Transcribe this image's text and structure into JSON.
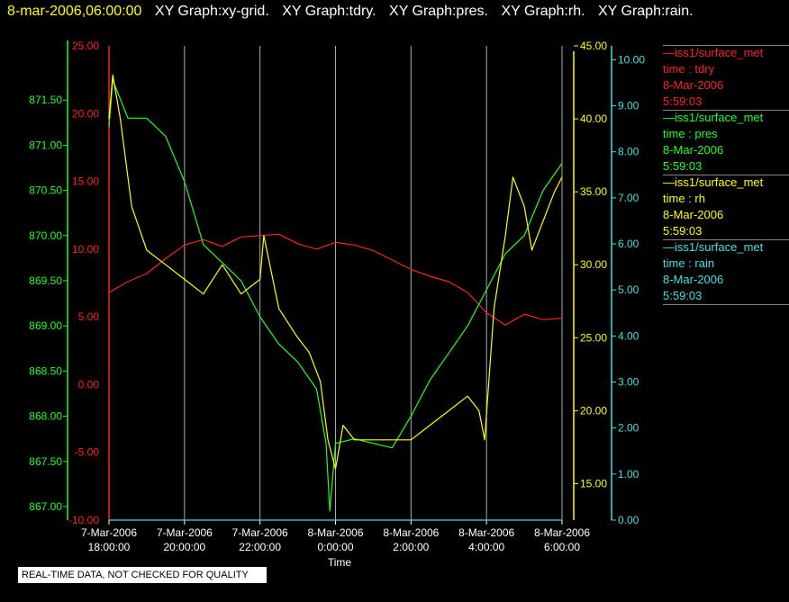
{
  "header": {
    "timestamp": "8-mar-2006,06:00:00",
    "graphs": [
      "XY Graph:xy-grid.",
      "XY Graph:tdry.",
      "XY Graph:pres.",
      "XY Graph:rh.",
      "XY Graph:rain."
    ]
  },
  "notice": "REAL-TIME DATA, NOT CHECKED FOR QUALITY",
  "colors": {
    "tdry": "#ff2020",
    "pres": "#20ff20",
    "rh": "#ffff00",
    "rain": "#40e0e0",
    "grid": "#aaaaaa",
    "text": "#ffffff",
    "background": "#000000"
  },
  "legend": [
    {
      "dash": "—",
      "name": "iss1/surface_met",
      "field": "time : tdry",
      "date": "8-Mar-2006",
      "time": "5:59:03",
      "color": "#ff2020"
    },
    {
      "dash": "—",
      "name": "iss1/surface_met",
      "field": "time : pres",
      "date": "8-Mar-2006",
      "time": "5:59:03",
      "color": "#20ff20"
    },
    {
      "dash": "—",
      "name": "iss1/surface_met",
      "field": "time : rh",
      "date": "8-Mar-2006",
      "time": "5:59:03",
      "color": "#ffff00"
    },
    {
      "dash": "—",
      "name": "iss1/surface_met",
      "field": "time : rain",
      "date": "8-Mar-2006",
      "time": "5:59:03",
      "color": "#40e0e0"
    }
  ],
  "chart_data": {
    "type": "line",
    "xlabel": "Time",
    "x_ticks": [
      {
        "date": "7-Mar-2006",
        "time": "18:00:00"
      },
      {
        "date": "7-Mar-2006",
        "time": "20:00:00"
      },
      {
        "date": "7-Mar-2006",
        "time": "22:00:00"
      },
      {
        "date": "8-Mar-2006",
        "time": "0:00:00"
      },
      {
        "date": "8-Mar-2006",
        "time": "2:00:00"
      },
      {
        "date": "8-Mar-2006",
        "time": "4:00:00"
      },
      {
        "date": "8-Mar-2006",
        "time": "6:00:00"
      }
    ],
    "x_range_hours": [
      18,
      30
    ],
    "grid": "vertical",
    "axes": {
      "tdry": {
        "range": [
          -10,
          25
        ],
        "ticks": [
          "25.00",
          "20.00",
          "15.00",
          "10.00",
          "5.00",
          "0.00",
          "-5.00",
          "-10.00"
        ]
      },
      "pres": {
        "range": [
          866.85,
          872.1
        ],
        "ticks": [
          "871.50",
          "871.00",
          "870.50",
          "870.00",
          "869.50",
          "869.00",
          "868.50",
          "868.00",
          "867.50",
          "867.00"
        ]
      },
      "rh": {
        "range": [
          12.5,
          45
        ],
        "ticks": [
          "45.00",
          "40.00",
          "35.00",
          "30.00",
          "25.00",
          "20.00",
          "15.00"
        ]
      },
      "rain": {
        "range": [
          0,
          10.3
        ],
        "ticks": [
          "10.00",
          "9.00",
          "8.00",
          "7.00",
          "6.00",
          "5.00",
          "4.00",
          "3.00",
          "2.00",
          "1.00",
          "0.00"
        ]
      }
    },
    "series": [
      {
        "name": "iss1/surface_met time : tdry",
        "axis": "tdry",
        "x": [
          18.0,
          18.5,
          19.0,
          19.5,
          20.0,
          20.5,
          21.0,
          21.5,
          22.0,
          22.5,
          23.0,
          23.5,
          24.0,
          24.5,
          25.0,
          25.5,
          26.0,
          26.5,
          27.0,
          27.5,
          28.0,
          28.5,
          29.0,
          29.5,
          30.0
        ],
        "y": [
          6.8,
          7.6,
          8.2,
          9.3,
          10.3,
          10.7,
          10.2,
          10.9,
          11.0,
          11.1,
          10.4,
          10.0,
          10.5,
          10.3,
          9.9,
          9.2,
          8.5,
          8.0,
          7.6,
          6.8,
          5.3,
          4.4,
          5.2,
          4.8,
          4.9
        ]
      },
      {
        "name": "iss1/surface_met time : pres",
        "axis": "pres",
        "x": [
          18.0,
          18.1,
          18.5,
          19.0,
          19.5,
          20.0,
          20.5,
          21.0,
          21.5,
          22.0,
          22.5,
          23.0,
          23.5,
          23.75,
          23.85,
          24.0,
          24.5,
          25.0,
          25.5,
          26.0,
          26.5,
          27.0,
          27.5,
          28.0,
          28.5,
          29.0,
          29.5,
          30.0
        ],
        "y": [
          871.2,
          871.72,
          871.3,
          871.3,
          871.1,
          870.6,
          869.9,
          869.7,
          869.5,
          869.1,
          868.8,
          868.6,
          868.3,
          867.7,
          866.95,
          867.7,
          867.75,
          867.7,
          867.65,
          868.0,
          868.4,
          868.7,
          869.0,
          869.4,
          869.8,
          870.0,
          870.5,
          870.8
        ]
      },
      {
        "name": "iss1/surface_met time : rh",
        "axis": "rh",
        "x": [
          18.0,
          18.1,
          18.3,
          18.6,
          19.0,
          19.5,
          20.0,
          20.5,
          21.0,
          21.5,
          22.0,
          22.1,
          22.5,
          23.0,
          23.3,
          23.6,
          23.8,
          24.0,
          24.2,
          24.5,
          25.0,
          25.5,
          26.0,
          26.5,
          27.0,
          27.5,
          27.8,
          27.95,
          28.2,
          28.5,
          28.7,
          29.0,
          29.2,
          29.5,
          29.8,
          30.0
        ],
        "y": [
          40,
          43,
          40,
          34,
          31,
          30,
          29,
          28,
          30,
          28,
          29,
          32,
          27,
          25,
          24,
          22,
          18,
          16,
          19,
          18,
          18,
          18,
          18,
          19,
          20,
          21,
          20,
          18,
          27,
          32,
          36,
          34,
          31,
          33,
          35,
          36
        ]
      },
      {
        "name": "iss1/surface_met time : rain",
        "axis": "rain",
        "x": [
          18.0,
          30.0
        ],
        "y": [
          0.0,
          0.0
        ]
      }
    ]
  }
}
